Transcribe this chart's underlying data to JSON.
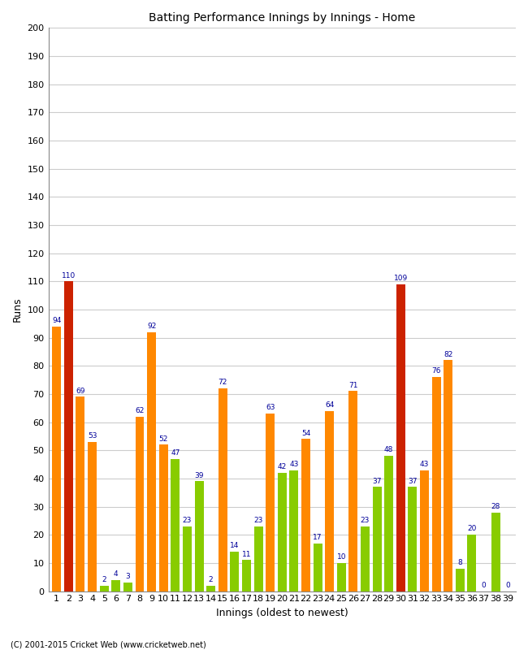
{
  "title": "Batting Performance Innings by Innings - Home",
  "xlabel": "Innings (oldest to newest)",
  "ylabel": "Runs",
  "ylim": [
    0,
    200
  ],
  "footer": "(C) 2001-2015 Cricket Web (www.cricketweb.net)",
  "innings_labels": [
    "1",
    "2",
    "3",
    "4",
    "5",
    "6",
    "7",
    "8",
    "9",
    "10",
    "11",
    "12",
    "13",
    "14",
    "15",
    "16",
    "17",
    "18",
    "19",
    "20",
    "21",
    "22",
    "23",
    "24",
    "25",
    "26",
    "27",
    "28",
    "29",
    "30",
    "31",
    "32",
    "33",
    "34",
    "35",
    "36",
    "37",
    "38",
    "39"
  ],
  "values": [
    94,
    110,
    69,
    53,
    2,
    4,
    3,
    62,
    92,
    52,
    47,
    23,
    39,
    2,
    72,
    14,
    11,
    23,
    63,
    42,
    43,
    54,
    17,
    64,
    10,
    71,
    23,
    37,
    48,
    109,
    37,
    43,
    76,
    82,
    8,
    20,
    0,
    28,
    0
  ],
  "colors": [
    "#ff8800",
    "#cc2200",
    "#ff8800",
    "#ff8800",
    "#88cc00",
    "#88cc00",
    "#88cc00",
    "#ff8800",
    "#ff8800",
    "#ff8800",
    "#88cc00",
    "#88cc00",
    "#88cc00",
    "#88cc00",
    "#ff8800",
    "#88cc00",
    "#88cc00",
    "#88cc00",
    "#ff8800",
    "#88cc00",
    "#88cc00",
    "#ff8800",
    "#88cc00",
    "#ff8800",
    "#88cc00",
    "#ff8800",
    "#88cc00",
    "#88cc00",
    "#88cc00",
    "#cc2200",
    "#88cc00",
    "#ff8800",
    "#ff8800",
    "#ff8800",
    "#88cc00",
    "#88cc00",
    "#88cc00",
    "#88cc00",
    "#88cc00"
  ],
  "label_color": "#000099",
  "grid_color": "#cccccc",
  "bg_color": "#ffffff",
  "bar_width": 0.75,
  "title_fontsize": 10,
  "axis_fontsize": 9,
  "tick_fontsize": 8,
  "label_fontsize": 6.5
}
